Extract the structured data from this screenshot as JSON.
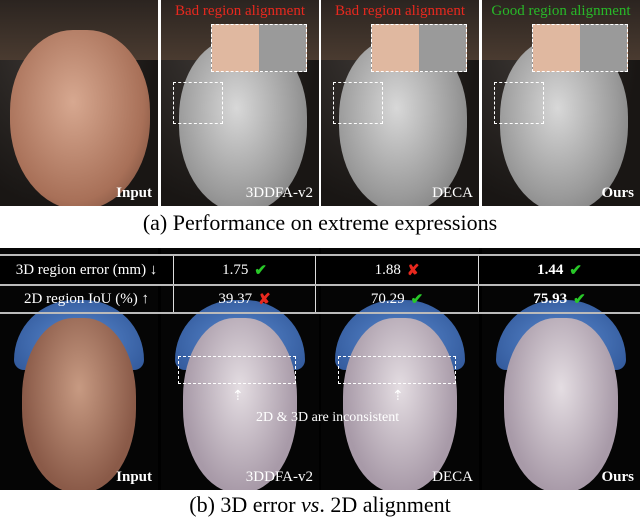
{
  "part_a": {
    "caption": "(a) Performance on extreme expressions",
    "panels": [
      {
        "top_label": "",
        "bottom_label": "Input"
      },
      {
        "top_label": "Bad region alignment",
        "bottom_label": "3DDFA-v2"
      },
      {
        "top_label": "Bad region alignment",
        "bottom_label": "DECA"
      },
      {
        "top_label": "Good region alignment",
        "bottom_label": "Ours"
      }
    ],
    "colors": {
      "bad": "#e8281e",
      "good": "#28b828"
    }
  },
  "part_b": {
    "caption_prefix": "(b) 3D error ",
    "caption_vs": "vs",
    "caption_suffix": ". 2D alignment",
    "table": {
      "rows": [
        {
          "label": "3D region error (mm) ↓",
          "cells": [
            {
              "value": "1.75",
              "mark": "✔"
            },
            {
              "value": "1.88",
              "mark": "✘"
            },
            {
              "value": "1.44",
              "mark": "✔"
            }
          ]
        },
        {
          "label": "2D region IoU (%) ↑",
          "cells": [
            {
              "value": "39.37",
              "mark": "✘"
            },
            {
              "value": "70.29",
              "mark": "✔"
            },
            {
              "value": "75.93",
              "mark": "✔"
            }
          ]
        }
      ]
    },
    "annotation": "2D & 3D are inconsistent",
    "panels": [
      {
        "bottom_label": "Input"
      },
      {
        "bottom_label": "3DDFA-v2"
      },
      {
        "bottom_label": "DECA"
      },
      {
        "bottom_label": "Ours"
      }
    ]
  }
}
